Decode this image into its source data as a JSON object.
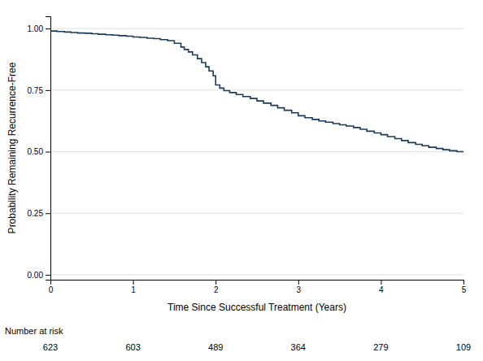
{
  "chart_data": {
    "type": "step",
    "x_label": "Time Since Successful Treatment (Years)",
    "y_label": "Probability Remaining Recurrence-Free",
    "x": [
      0.0,
      0.08,
      0.17,
      0.25,
      0.33,
      0.42,
      0.5,
      0.58,
      0.67,
      0.75,
      0.83,
      0.92,
      1.0,
      1.08,
      1.17,
      1.25,
      1.33,
      1.42,
      1.5,
      1.58,
      1.62,
      1.67,
      1.72,
      1.78,
      1.83,
      1.88,
      1.92,
      1.97,
      2.0,
      2.05,
      2.1,
      2.17,
      2.25,
      2.33,
      2.42,
      2.5,
      2.58,
      2.67,
      2.75,
      2.83,
      2.92,
      3.0,
      3.08,
      3.17,
      3.25,
      3.33,
      3.42,
      3.5,
      3.58,
      3.67,
      3.75,
      3.83,
      3.92,
      4.0,
      4.08,
      4.17,
      4.25,
      4.33,
      4.42,
      4.5,
      4.58,
      4.67,
      4.75,
      4.83,
      4.92,
      5.0
    ],
    "values": [
      0.99,
      0.988,
      0.986,
      0.984,
      0.982,
      0.981,
      0.979,
      0.977,
      0.975,
      0.973,
      0.971,
      0.969,
      0.966,
      0.964,
      0.961,
      0.959,
      0.955,
      0.951,
      0.94,
      0.925,
      0.915,
      0.905,
      0.893,
      0.878,
      0.862,
      0.845,
      0.828,
      0.808,
      0.771,
      0.758,
      0.748,
      0.74,
      0.732,
      0.724,
      0.716,
      0.706,
      0.697,
      0.688,
      0.678,
      0.668,
      0.658,
      0.646,
      0.638,
      0.631,
      0.625,
      0.62,
      0.614,
      0.609,
      0.604,
      0.598,
      0.591,
      0.583,
      0.576,
      0.569,
      0.561,
      0.553,
      0.545,
      0.537,
      0.53,
      0.524,
      0.518,
      0.513,
      0.508,
      0.504,
      0.5,
      0.497
    ],
    "color": "#1b3a5c",
    "xlim": [
      0,
      5
    ],
    "ylim": [
      -0.02,
      1.05
    ],
    "xticks": [
      0,
      1,
      2,
      3,
      4,
      5
    ],
    "yticks": [
      {
        "value": 0.0,
        "label": "0.00"
      },
      {
        "value": 0.25,
        "label": "0.25"
      },
      {
        "value": 0.5,
        "label": "0.50"
      },
      {
        "value": 0.75,
        "label": "0.75"
      },
      {
        "value": 1.0,
        "label": "1.00"
      }
    ],
    "grid": "y",
    "risk_label": "Number at risk",
    "risk_times": [
      0,
      1,
      2,
      3,
      4,
      5
    ],
    "risk_numbers": [
      623,
      603,
      489,
      364,
      279,
      109
    ]
  }
}
